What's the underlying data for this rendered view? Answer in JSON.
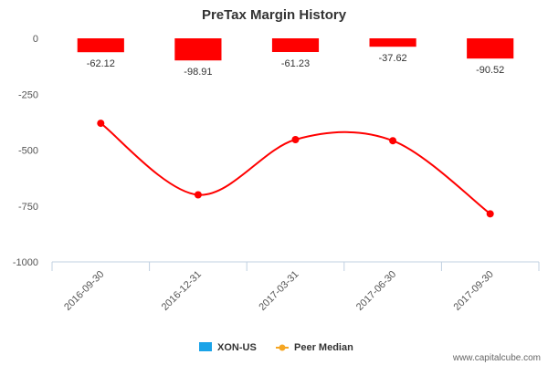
{
  "chart_data": {
    "type": "bar",
    "title": "PreTax Margin History",
    "categories": [
      "2016-09-30",
      "2016-12-31",
      "2017-03-31",
      "2017-06-30",
      "2017-09-30"
    ],
    "series": [
      {
        "name": "XON-US",
        "type": "bar",
        "values": [
          -62.12,
          -98.91,
          -61.23,
          -37.62,
          -90.52
        ],
        "data_labels": [
          "-62.12",
          "-98.91",
          "-61.23",
          "-37.62",
          "-90.52"
        ],
        "color": "#ff0000"
      },
      {
        "name": "Peer Median",
        "type": "line",
        "values": [
          -380,
          -700,
          -453,
          -458,
          -785
        ],
        "color": "#ff0000"
      }
    ],
    "y_ticks": [
      "0",
      "-250",
      "-500",
      "-750",
      "-1000"
    ],
    "ylim": [
      -1000,
      0
    ],
    "grid": false,
    "legend": "bottom-center",
    "legend_colors": {
      "XON-US": "#1aa3e8",
      "Peer Median": "#f5a623"
    }
  },
  "credit": "www.capitalcube.com"
}
